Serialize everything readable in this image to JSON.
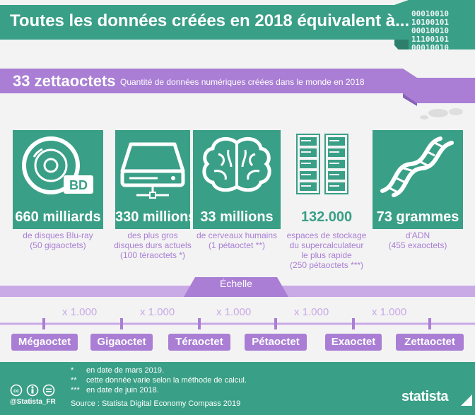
{
  "title": "Toutes les données créées en 2018 équivalent à...",
  "binary_lines": [
    "00010010",
    "10100101",
    "00010010",
    "11100101",
    "00010010"
  ],
  "headline": {
    "value": "33 zettaoctets",
    "description": "Quantité de données numériques créées dans le monde en 2018"
  },
  "cards": [
    {
      "icon": "bluray-disc-icon",
      "icon_label": "BD",
      "value": "660 milliards",
      "desc": [
        "de disques Blu-ray",
        "(50 gigaoctets)"
      ]
    },
    {
      "icon": "hard-drive-icon",
      "value": "330 millions",
      "desc": [
        "des plus gros",
        "disques durs actuels",
        "(100 téraoctets *)"
      ]
    },
    {
      "icon": "brain-icon",
      "value": "33 millions",
      "desc": [
        "de cerveaux humains",
        "(1 pétaoctet **)"
      ]
    },
    {
      "icon": "server-rack-icon",
      "value": "132.000",
      "desc": [
        "espaces de stockage",
        "du supercalculateur",
        "le plus rapide",
        "(250 pétaoctets ***)"
      ]
    },
    {
      "icon": "dna-icon",
      "value": "73 grammes",
      "desc": [
        "d'ADN",
        "(455 exaoctets)"
      ]
    }
  ],
  "scale": {
    "label": "Échelle",
    "multiplier": "x 1.000",
    "units": [
      "Mégaoctet",
      "Gigaoctet",
      "Téraoctet",
      "Pétaoctet",
      "Exaoctet",
      "Zettaoctet"
    ]
  },
  "footnotes": [
    {
      "mark": "*",
      "text": "en date de mars 2019."
    },
    {
      "mark": "**",
      "text": "cette donnée varie selon la méthode de calcul."
    },
    {
      "mark": "***",
      "text": "en date de juin 2018."
    }
  ],
  "source": "Source : Statista Digital Economy Compass 2019",
  "handle": "@Statista_FR",
  "brand": "statista",
  "colors": {
    "green": "#3a9f87",
    "purple": "#a97ed4",
    "light_purple": "#c9a9e6",
    "background": "#f3f3f3"
  }
}
